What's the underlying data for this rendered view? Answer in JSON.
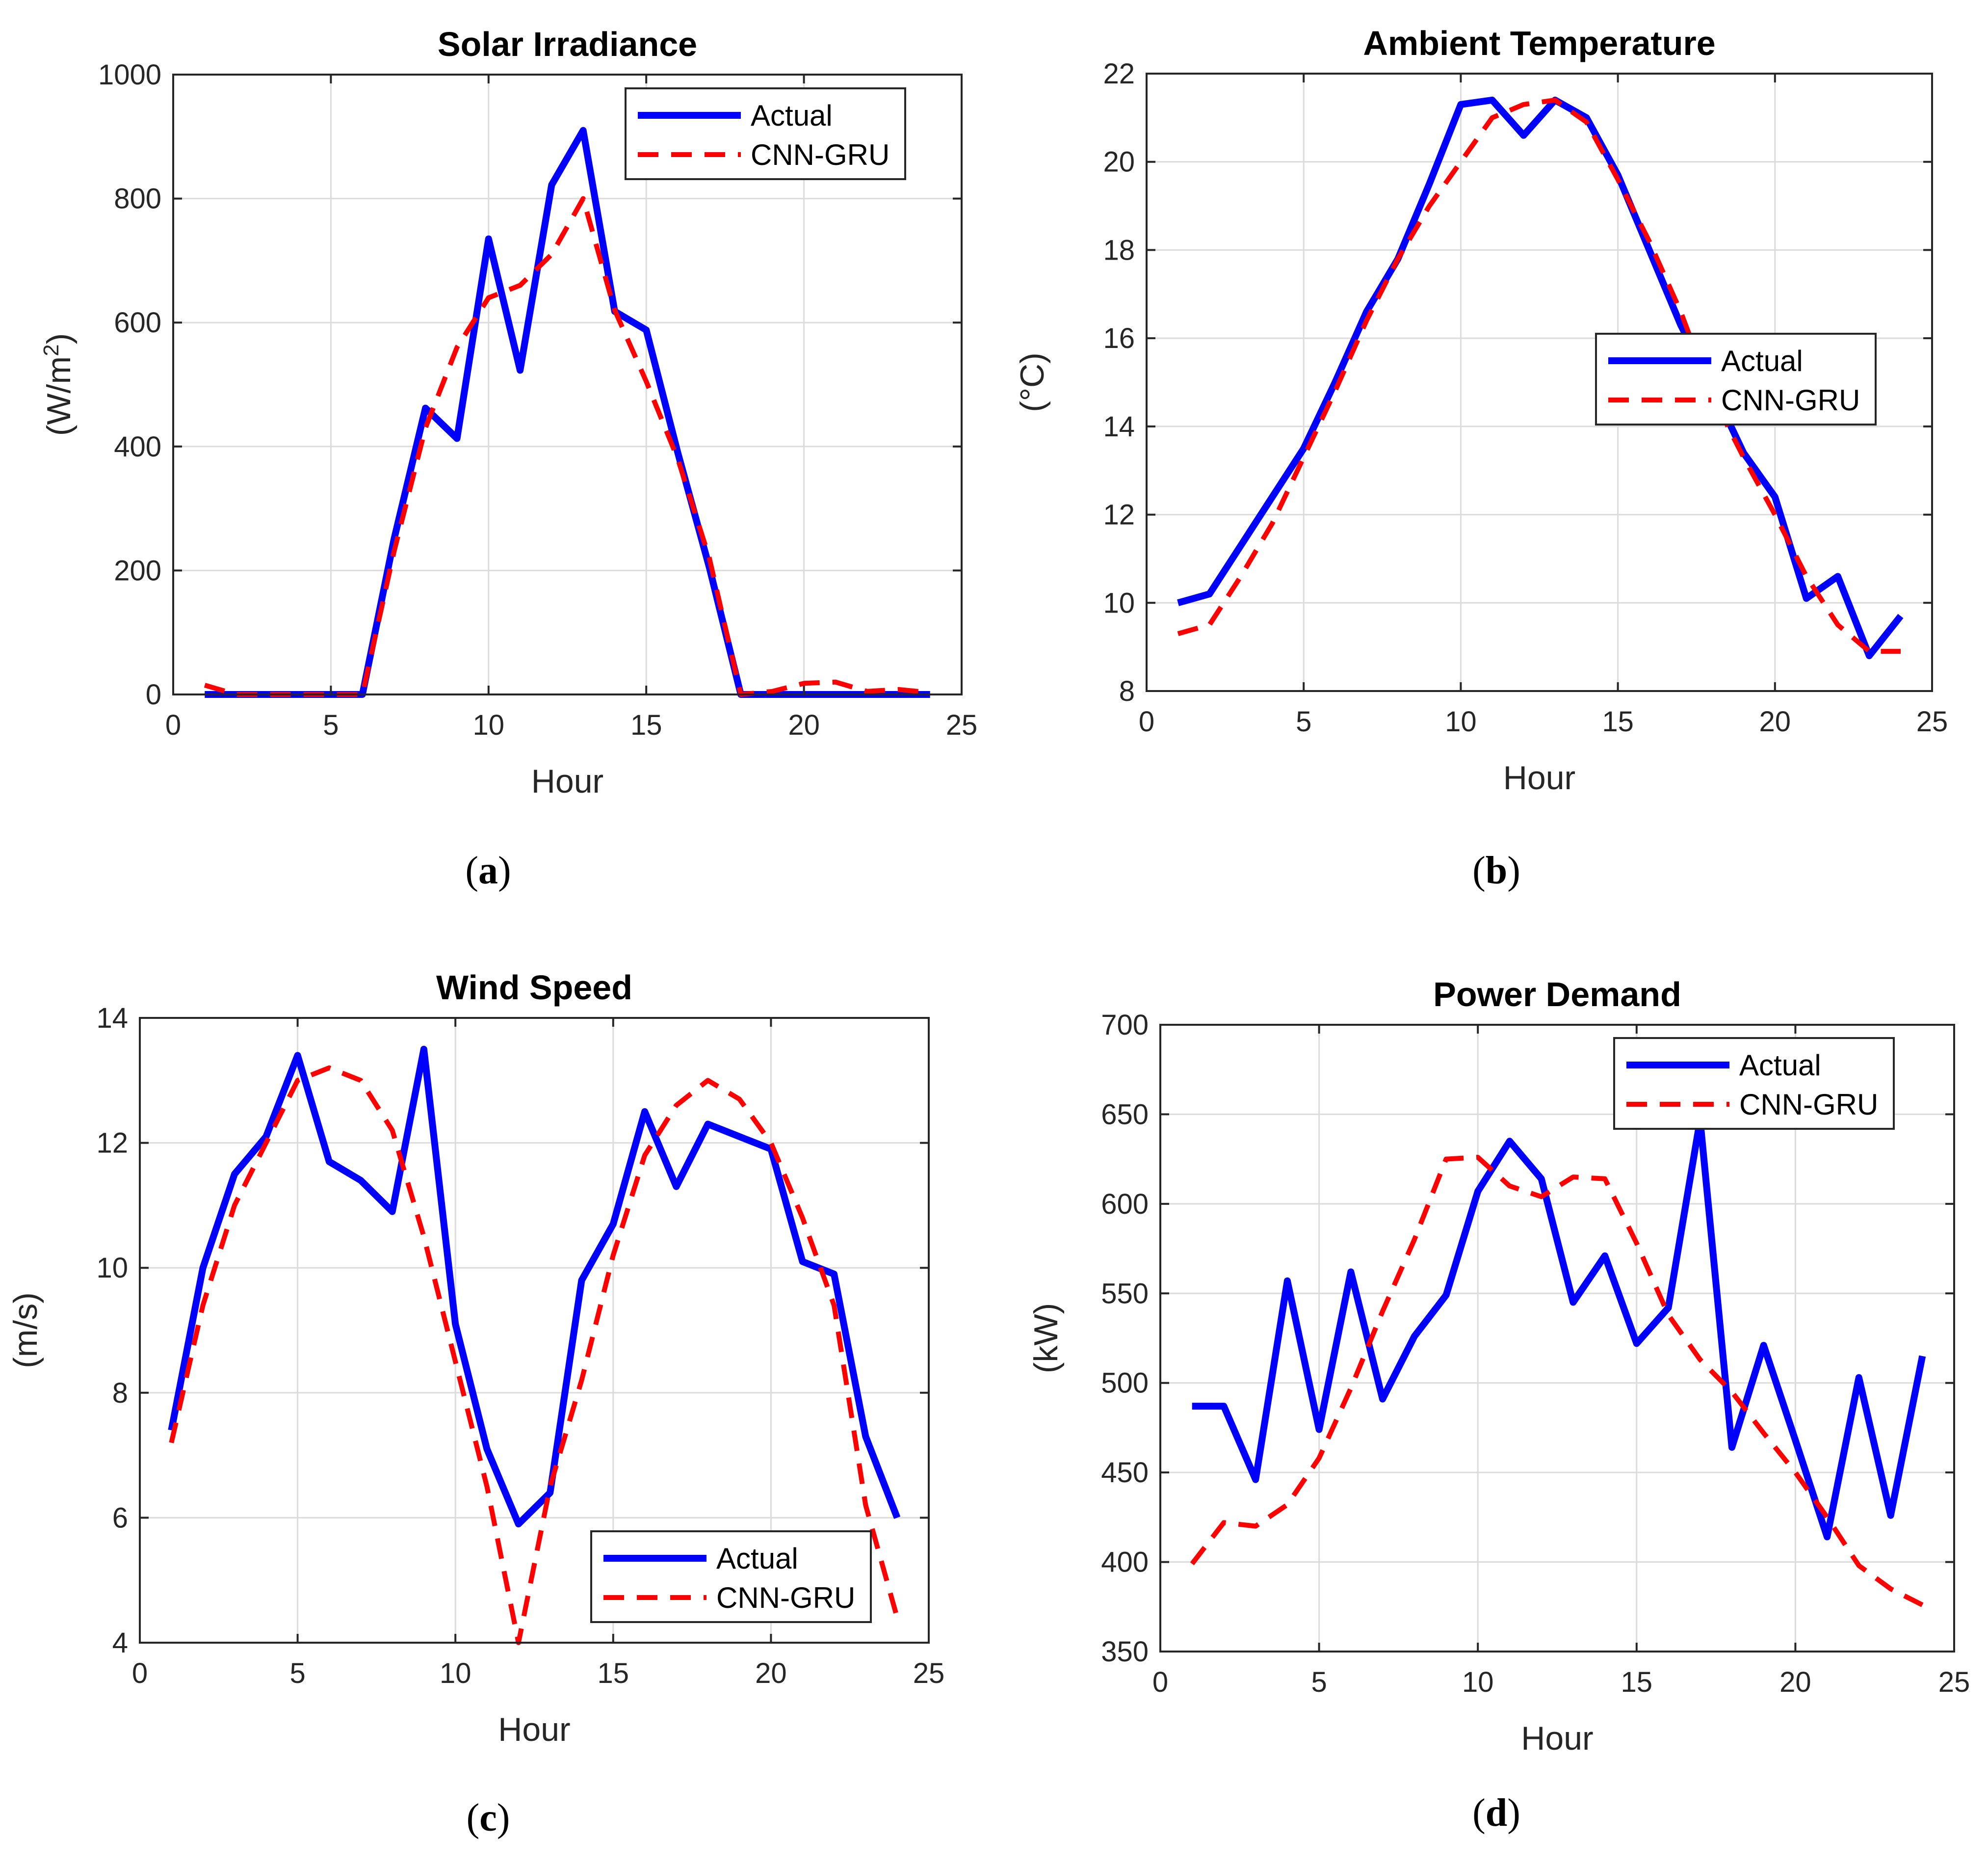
{
  "colors": {
    "actual": "#0000ff",
    "predicted": "#ff0000",
    "grid": "#dcdcdc",
    "axis": "#262626"
  },
  "chart_data": [
    {
      "type": "line",
      "title": "Solar Irradiance",
      "xlabel": "Hour",
      "ylabel": "(W/m",
      "ylabel_sup": "2",
      "ylabel_end": ")",
      "xlim": [
        0,
        25
      ],
      "ylim": [
        0,
        1000
      ],
      "xticks": [
        0,
        5,
        10,
        15,
        20,
        25
      ],
      "xtick_labels": [
        "0",
        "5",
        "10",
        "15",
        "20",
        "25"
      ],
      "yticks": [
        0,
        200,
        400,
        600,
        800,
        1000
      ],
      "ytick_labels": [
        "0",
        "200",
        "400",
        "600",
        "800",
        "1000"
      ],
      "legend_position": "top-right",
      "caption_letter": "a",
      "x": [
        1,
        2,
        3,
        4,
        5,
        6,
        7,
        8,
        9,
        10,
        11,
        12,
        13,
        14,
        15,
        16,
        17,
        18,
        19,
        20,
        21,
        22,
        23,
        24
      ],
      "series": [
        {
          "name": "Actual",
          "style": "solid",
          "values": [
            0,
            0,
            0,
            0,
            0,
            0,
            250,
            462,
            413,
            735,
            523,
            822,
            910,
            618,
            588,
            390,
            205,
            0,
            0,
            0,
            0,
            0,
            0,
            0
          ]
        },
        {
          "name": "CNN-GRU",
          "style": "dashed",
          "values": [
            15,
            0,
            0,
            0,
            0,
            0,
            230,
            430,
            560,
            640,
            660,
            710,
            800,
            620,
            505,
            380,
            220,
            0,
            5,
            18,
            20,
            5,
            8,
            3
          ]
        }
      ]
    },
    {
      "type": "line",
      "title": "Ambient Temperature",
      "xlabel": "Hour",
      "ylabel": "(°C)",
      "ylabel_sup": "",
      "ylabel_end": "",
      "xlim": [
        0,
        25
      ],
      "ylim": [
        8,
        22
      ],
      "xticks": [
        0,
        5,
        10,
        15,
        20,
        25
      ],
      "xtick_labels": [
        "0",
        "5",
        "10",
        "15",
        "20",
        "25"
      ],
      "yticks": [
        8,
        10,
        12,
        14,
        16,
        18,
        20,
        22
      ],
      "ytick_labels": [
        "8",
        "10",
        "12",
        "14",
        "16",
        "18",
        "20",
        "22"
      ],
      "legend_position": "right",
      "caption_letter": "b",
      "x": [
        1,
        2,
        3,
        4,
        5,
        6,
        7,
        8,
        9,
        10,
        11,
        12,
        13,
        14,
        15,
        16,
        17,
        18,
        19,
        20,
        21,
        22,
        23,
        24
      ],
      "series": [
        {
          "name": "Actual",
          "style": "solid",
          "values": [
            10.0,
            10.2,
            11.3,
            12.4,
            13.5,
            15.0,
            16.6,
            17.8,
            19.5,
            21.3,
            21.4,
            20.6,
            21.4,
            21.0,
            19.7,
            18.0,
            16.3,
            14.9,
            13.4,
            12.4,
            10.1,
            10.6,
            8.8,
            9.7
          ]
        },
        {
          "name": "CNN-GRU",
          "style": "dashed",
          "values": [
            9.3,
            9.5,
            10.6,
            11.8,
            13.3,
            14.8,
            16.4,
            17.8,
            19.0,
            20.0,
            21.0,
            21.3,
            21.4,
            20.9,
            19.6,
            18.2,
            16.6,
            14.7,
            13.3,
            12.0,
            10.6,
            9.5,
            8.9,
            8.9
          ]
        }
      ]
    },
    {
      "type": "line",
      "title": "Wind Speed",
      "xlabel": "Hour",
      "ylabel": "(m/s)",
      "ylabel_sup": "",
      "ylabel_end": "",
      "xlim": [
        0,
        25
      ],
      "ylim": [
        4,
        14
      ],
      "xticks": [
        0,
        5,
        10,
        15,
        20,
        25
      ],
      "xtick_labels": [
        "0",
        "5",
        "10",
        "15",
        "20",
        "25"
      ],
      "yticks": [
        4,
        6,
        8,
        10,
        12,
        14
      ],
      "ytick_labels": [
        "4",
        "6",
        "8",
        "10",
        "12",
        "14"
      ],
      "legend_position": "bottom-right",
      "caption_letter": "c",
      "x": [
        1,
        2,
        3,
        4,
        5,
        6,
        7,
        8,
        9,
        10,
        11,
        12,
        13,
        14,
        15,
        16,
        17,
        18,
        19,
        20,
        21,
        22,
        23,
        24
      ],
      "series": [
        {
          "name": "Actual",
          "style": "solid",
          "values": [
            7.4,
            10.0,
            11.5,
            12.1,
            13.4,
            11.7,
            11.4,
            10.9,
            13.5,
            9.1,
            7.1,
            5.9,
            6.4,
            9.8,
            10.7,
            12.5,
            11.3,
            12.3,
            12.1,
            11.9,
            10.1,
            9.9,
            7.3,
            6.0
          ]
        },
        {
          "name": "CNN-GRU",
          "style": "dashed",
          "values": [
            7.2,
            9.4,
            11.0,
            12.0,
            13.0,
            13.2,
            13.0,
            12.2,
            10.5,
            8.5,
            6.5,
            4.0,
            6.5,
            8.2,
            10.2,
            11.8,
            12.6,
            13.0,
            12.7,
            12.0,
            10.8,
            9.4,
            6.2,
            4.4
          ]
        }
      ]
    },
    {
      "type": "line",
      "title": "Power Demand",
      "xlabel": "Hour",
      "ylabel": "(kW)",
      "ylabel_sup": "",
      "ylabel_end": "",
      "xlim": [
        0,
        25
      ],
      "ylim": [
        350,
        700
      ],
      "xticks": [
        0,
        5,
        10,
        15,
        20,
        25
      ],
      "xtick_labels": [
        "0",
        "5",
        "10",
        "15",
        "20",
        "25"
      ],
      "yticks": [
        350,
        400,
        450,
        500,
        550,
        600,
        650,
        700
      ],
      "ytick_labels": [
        "350",
        "400",
        "450",
        "500",
        "550",
        "600",
        "650",
        "700"
      ],
      "legend_position": "top-right",
      "caption_letter": "d",
      "x": [
        1,
        2,
        3,
        4,
        5,
        6,
        7,
        8,
        9,
        10,
        11,
        12,
        13,
        14,
        15,
        16,
        17,
        18,
        19,
        20,
        21,
        22,
        23,
        24
      ],
      "series": [
        {
          "name": "Actual",
          "style": "solid",
          "values": [
            487,
            487,
            446,
            557,
            474,
            562,
            491,
            526,
            549,
            607,
            635,
            614,
            545,
            571,
            522,
            542,
            647,
            464,
            521,
            468,
            414,
            503,
            426,
            515
          ]
        },
        {
          "name": "CNN-GRU",
          "style": "dashed",
          "values": [
            399,
            422,
            420,
            432,
            458,
            497,
            540,
            580,
            625,
            626,
            610,
            604,
            615,
            614,
            578,
            538,
            513,
            495,
            472,
            450,
            425,
            398,
            385,
            376
          ]
        }
      ]
    }
  ]
}
